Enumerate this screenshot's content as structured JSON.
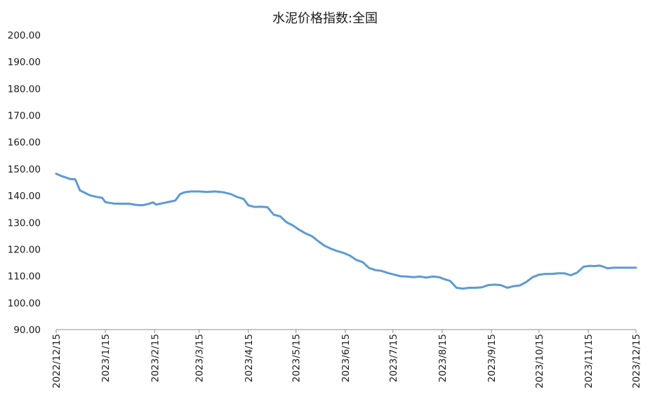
{
  "chart_data": {
    "type": "line",
    "title": "水泥价格指数:全国",
    "xlabel": "",
    "ylabel": "",
    "ylim": [
      90,
      200
    ],
    "y_ticks": [
      "90.00",
      "100.00",
      "110.00",
      "120.00",
      "130.00",
      "140.00",
      "150.00",
      "160.00",
      "170.00",
      "180.00",
      "190.00",
      "200.00"
    ],
    "x_ticks": [
      "2022/12/15",
      "2023/1/15",
      "2023/2/15",
      "2023/3/15",
      "2023/4/15",
      "2023/5/15",
      "2023/6/15",
      "2023/7/15",
      "2023/8/15",
      "2023/9/15",
      "2023/10/15",
      "2023/11/15",
      "2023/12/15"
    ],
    "grid": false,
    "legend": "none",
    "line_color": "#5B9BD5",
    "series": [
      {
        "x": [
          "2022/12/15",
          "2022/12/18",
          "2022/12/21",
          "2022/12/24",
          "2022/12/27",
          "2022/12/30",
          "2023/1/2",
          "2023/1/5",
          "2023/1/9",
          "2023/1/13",
          "2023/1/15",
          "2023/1/20",
          "2023/1/25",
          "2023/1/30",
          "2023/2/3",
          "2023/2/7",
          "2023/2/11",
          "2023/2/14",
          "2023/2/16",
          "2023/2/20",
          "2023/2/24",
          "2023/2/28",
          "2023/3/3",
          "2023/3/6",
          "2023/3/10",
          "2023/3/15",
          "2023/3/20",
          "2023/3/25",
          "2023/3/30",
          "2023/4/4",
          "2023/4/8",
          "2023/4/12",
          "2023/4/15",
          "2023/4/19",
          "2023/4/23",
          "2023/4/27",
          "2023/5/1",
          "2023/5/5",
          "2023/5/9",
          "2023/5/13",
          "2023/5/17",
          "2023/5/21",
          "2023/5/25",
          "2023/5/29",
          "2023/6/2",
          "2023/6/6",
          "2023/6/10",
          "2023/6/14",
          "2023/6/18",
          "2023/6/22",
          "2023/6/26",
          "2023/6/30",
          "2023/7/4",
          "2023/7/8",
          "2023/7/12",
          "2023/7/16",
          "2023/7/20",
          "2023/7/24",
          "2023/7/28",
          "2023/8/1",
          "2023/8/5",
          "2023/8/9",
          "2023/8/13",
          "2023/8/16",
          "2023/8/20",
          "2023/8/24",
          "2023/8/28",
          "2023/9/1",
          "2023/9/5",
          "2023/9/9",
          "2023/9/13",
          "2023/9/17",
          "2023/9/21",
          "2023/9/25",
          "2023/9/29",
          "2023/10/3",
          "2023/10/7",
          "2023/10/11",
          "2023/10/15",
          "2023/10/19",
          "2023/10/23",
          "2023/10/27",
          "2023/10/31",
          "2023/11/4",
          "2023/11/8",
          "2023/11/12",
          "2023/11/16",
          "2023/11/19",
          "2023/11/22",
          "2023/11/24",
          "2023/11/27",
          "2023/12/1",
          "2023/12/5",
          "2023/12/9",
          "2023/12/13",
          "2023/12/15"
        ],
        "values": [
          148.2,
          147.4,
          146.8,
          146.2,
          146.1,
          142.0,
          141.1,
          140.2,
          139.6,
          139.2,
          137.6,
          137.1,
          137.0,
          137.0,
          136.6,
          136.4,
          136.9,
          137.5,
          136.7,
          137.2,
          137.7,
          138.2,
          140.6,
          141.3,
          141.6,
          141.6,
          141.4,
          141.6,
          141.3,
          140.6,
          139.5,
          138.8,
          136.4,
          135.8,
          135.9,
          135.7,
          132.9,
          132.3,
          130.1,
          128.9,
          127.3,
          125.9,
          124.9,
          123.0,
          121.3,
          120.2,
          119.3,
          118.6,
          117.6,
          116.0,
          115.2,
          113.0,
          112.2,
          111.9,
          111.1,
          110.5,
          109.9,
          109.8,
          109.6,
          109.8,
          109.4,
          109.8,
          109.6,
          108.9,
          108.2,
          105.6,
          105.3,
          105.6,
          105.6,
          105.8,
          106.6,
          106.8,
          106.6,
          105.6,
          106.2,
          106.5,
          107.8,
          109.6,
          110.5,
          110.8,
          110.8,
          111.0,
          111.0,
          110.3,
          111.3,
          113.5,
          113.8,
          113.7,
          113.9,
          113.6,
          112.9,
          113.1,
          113.1,
          113.1,
          113.1,
          113.1
        ]
      }
    ]
  }
}
